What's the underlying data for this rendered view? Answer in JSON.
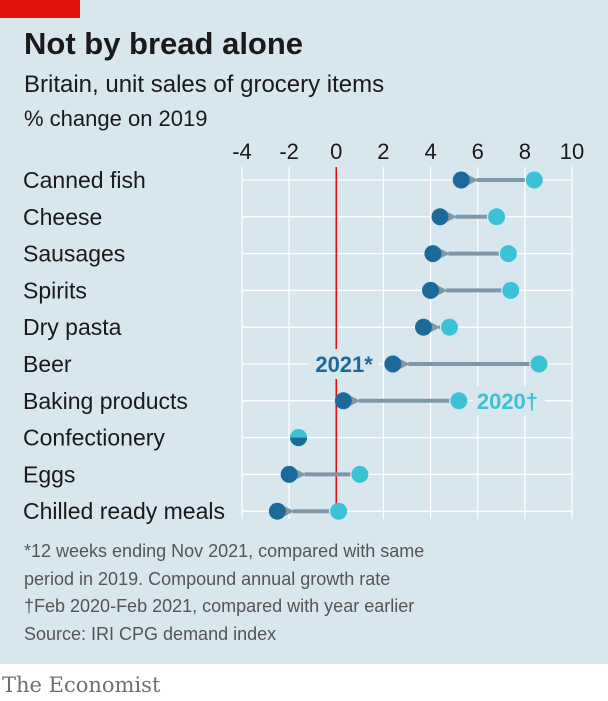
{
  "header": {
    "title": "Not by bread alone",
    "subtitle": "Britain, unit sales of grocery items",
    "unit": "% change on 2019"
  },
  "colors": {
    "background": "#d8e6ee",
    "accent_tag": "#e3120b",
    "series_2021": "#1c6a9a",
    "series_2020": "#3cc2d6",
    "arrow": "#7f98a8",
    "zero_line": "#e3120b",
    "grid": "#ffffff",
    "brand": "#6f6f6f"
  },
  "chart_data": {
    "type": "scatter",
    "title": "Not by bread alone",
    "subtitle": "Britain, unit sales of grocery items",
    "xlabel": "% change on 2019",
    "xlim": [
      -4,
      10
    ],
    "xticks": [
      "-4",
      "-2",
      "0",
      "2",
      "4",
      "6",
      "8",
      "10"
    ],
    "xtick_values": [
      -4,
      -2,
      0,
      2,
      4,
      6,
      8,
      10
    ],
    "grid": true,
    "categories": [
      "Canned fish",
      "Cheese",
      "Sausages",
      "Spirits",
      "Dry pasta",
      "Beer",
      "Baking products",
      "Confectionery",
      "Eggs",
      "Chilled ready meals"
    ],
    "series": [
      {
        "name": "2020†",
        "values": [
          8.4,
          6.8,
          7.3,
          7.4,
          4.8,
          8.6,
          5.2,
          -1.6,
          1.0,
          0.1
        ]
      },
      {
        "name": "2021*",
        "values": [
          5.3,
          4.4,
          4.1,
          4.0,
          3.7,
          2.4,
          0.3,
          -1.6,
          -2.0,
          -2.5
        ]
      }
    ],
    "annotations": [
      {
        "text": "2021*",
        "series": "2021*",
        "category": "Beer"
      },
      {
        "text": "2020†",
        "series": "2020†",
        "category": "Baking products"
      }
    ]
  },
  "footnote": {
    "lines": [
      "*12 weeks ending Nov 2021, compared with same",
      "period in 2019. Compound annual growth rate",
      "†Feb 2020-Feb 2021, compared with year earlier",
      "Source: IRI CPG demand index"
    ]
  },
  "brand": "The Economist"
}
